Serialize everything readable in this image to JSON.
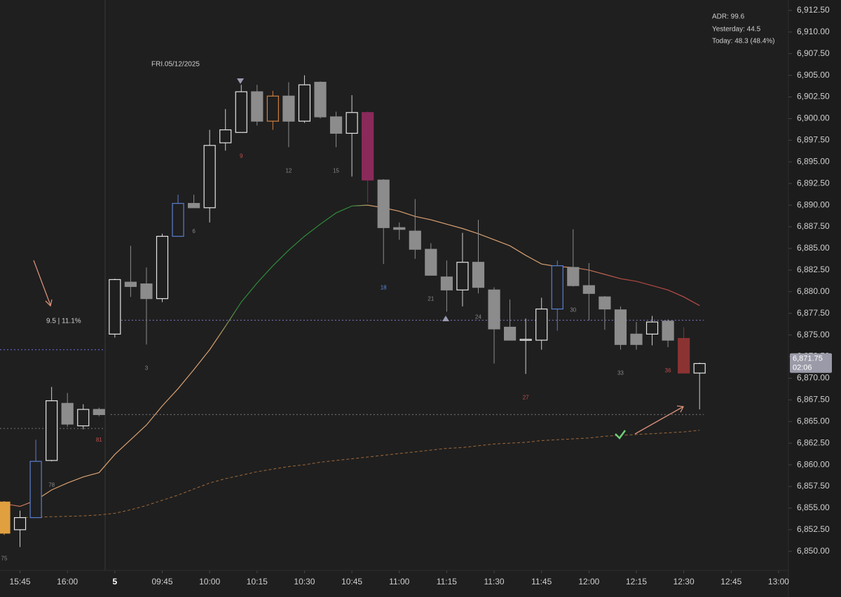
{
  "chart_data": {
    "type": "candlestick",
    "date_label": "FRI.05/12/2025",
    "annotation": "9.5 | 11.1%",
    "info": [
      "ADR: 99.6",
      "Yesterday: 44.5",
      "Today: 48.3 (48.4%)"
    ],
    "last_price": {
      "value": 6871.75,
      "label": "6,871.75"
    },
    "countdown": "02:06",
    "up_color": "#e6e6e6",
    "down_color": "#8c8c8c",
    "candles": [
      {
        "x": "15:40",
        "open": 6852.1,
        "high": 6855.8,
        "low": 6851.9,
        "close": 6855.7,
        "color": "#e0a040"
      },
      {
        "x": "15:45",
        "open": 6852.5,
        "high": 6854.7,
        "low": 6850.5,
        "close": 6853.9
      },
      {
        "x": "15:50",
        "open": 6853.9,
        "high": 6862.9,
        "low": 6853.9,
        "close": 6860.4,
        "color": "#5a7fd0"
      },
      {
        "x": "15:55",
        "open": 6860.5,
        "high": 6869.0,
        "low": 6860.4,
        "close": 6867.4
      },
      {
        "x": "16:00",
        "open": 6867.1,
        "high": 6868.3,
        "low": 6864.4,
        "close": 6864.7
      },
      {
        "x": "16:05",
        "open": 6864.5,
        "high": 6867.0,
        "low": 6864.1,
        "close": 6866.4
      },
      {
        "x": "16:10",
        "open": 6866.4,
        "high": 6866.6,
        "low": 6865.6,
        "close": 6865.8
      },
      {
        "x": "09:30",
        "open": 6875.1,
        "high": 6881.5,
        "low": 6874.7,
        "close": 6881.4
      },
      {
        "x": "09:35",
        "open": 6881.1,
        "high": 6885.3,
        "low": 6879.4,
        "close": 6880.6
      },
      {
        "x": "09:40",
        "open": 6880.9,
        "high": 6882.8,
        "low": 6873.9,
        "close": 6879.2
      },
      {
        "x": "09:45",
        "open": 6879.2,
        "high": 6886.7,
        "low": 6878.8,
        "close": 6886.4
      },
      {
        "x": "09:50",
        "open": 6886.4,
        "high": 6891.2,
        "low": 6886.4,
        "close": 6890.2,
        "color": "#5a7fd0"
      },
      {
        "x": "09:55",
        "open": 6890.2,
        "high": 6891.2,
        "low": 6889.7,
        "close": 6889.7
      },
      {
        "x": "10:00",
        "open": 6889.7,
        "high": 6898.7,
        "low": 6888.0,
        "close": 6896.9
      },
      {
        "x": "10:05",
        "open": 6897.2,
        "high": 6901.1,
        "low": 6896.3,
        "close": 6898.7
      },
      {
        "x": "10:10",
        "open": 6898.4,
        "high": 6903.9,
        "low": 6898.4,
        "close": 6903.1
      },
      {
        "x": "10:15",
        "open": 6903.1,
        "high": 6903.9,
        "low": 6899.2,
        "close": 6899.7
      },
      {
        "x": "10:20",
        "open": 6899.7,
        "high": 6903.2,
        "low": 6898.7,
        "close": 6902.6,
        "color": "#d08040"
      },
      {
        "x": "10:25",
        "open": 6902.6,
        "high": 6904.2,
        "low": 6896.7,
        "close": 6899.7
      },
      {
        "x": "10:30",
        "open": 6899.7,
        "high": 6905.0,
        "low": 6899.5,
        "close": 6903.9
      },
      {
        "x": "10:35",
        "open": 6904.2,
        "high": 6904.3,
        "low": 6900.0,
        "close": 6900.2
      },
      {
        "x": "10:40",
        "open": 6900.2,
        "high": 6900.8,
        "low": 6896.7,
        "close": 6898.3
      },
      {
        "x": "10:45",
        "open": 6898.3,
        "high": 6902.7,
        "low": 6893.3,
        "close": 6900.7
      },
      {
        "x": "10:50",
        "open": 6900.7,
        "high": 6900.8,
        "low": 6890.3,
        "close": 6892.9,
        "color": "#8a2a5a"
      },
      {
        "x": "10:55",
        "open": 6892.9,
        "high": 6893.0,
        "low": 6883.2,
        "close": 6887.4
      },
      {
        "x": "11:00",
        "open": 6887.4,
        "high": 6888.0,
        "low": 6886.0,
        "close": 6887.2
      },
      {
        "x": "11:05",
        "open": 6887.0,
        "high": 6890.7,
        "low": 6883.8,
        "close": 6884.9
      },
      {
        "x": "11:10",
        "open": 6884.9,
        "high": 6885.6,
        "low": 6881.9,
        "close": 6881.9
      },
      {
        "x": "11:15",
        "open": 6881.7,
        "high": 6883.6,
        "low": 6877.7,
        "close": 6880.2
      },
      {
        "x": "11:20",
        "open": 6880.2,
        "high": 6886.8,
        "low": 6878.3,
        "close": 6883.4
      },
      {
        "x": "11:25",
        "open": 6883.4,
        "high": 6888.3,
        "low": 6879.8,
        "close": 6880.5
      },
      {
        "x": "11:30",
        "open": 6880.2,
        "high": 6880.5,
        "low": 6871.7,
        "close": 6875.7
      },
      {
        "x": "11:35",
        "open": 6875.9,
        "high": 6879.1,
        "low": 6874.4,
        "close": 6874.4
      },
      {
        "x": "11:40",
        "open": 6874.4,
        "high": 6876.9,
        "low": 6870.5,
        "close": 6874.5
      },
      {
        "x": "11:45",
        "open": 6874.4,
        "high": 6879.3,
        "low": 6873.3,
        "close": 6878.0
      },
      {
        "x": "11:50",
        "open": 6878.0,
        "high": 6883.6,
        "low": 6875.5,
        "close": 6883.0,
        "color": "#5a7fd0"
      },
      {
        "x": "11:55",
        "open": 6882.8,
        "high": 6887.2,
        "low": 6880.6,
        "close": 6880.7
      },
      {
        "x": "12:00",
        "open": 6880.7,
        "high": 6883.3,
        "low": 6876.7,
        "close": 6879.8
      },
      {
        "x": "12:05",
        "open": 6879.4,
        "high": 6879.5,
        "low": 6875.6,
        "close": 6878.0
      },
      {
        "x": "12:10",
        "open": 6877.9,
        "high": 6878.3,
        "low": 6873.3,
        "close": 6873.9
      },
      {
        "x": "12:15",
        "open": 6875.1,
        "high": 6876.5,
        "low": 6873.3,
        "close": 6873.9
      },
      {
        "x": "12:20",
        "open": 6875.1,
        "high": 6877.2,
        "low": 6873.8,
        "close": 6876.5
      },
      {
        "x": "12:25",
        "open": 6876.6,
        "high": 6876.8,
        "low": 6873.6,
        "close": 6874.4
      },
      {
        "x": "12:30",
        "open": 6874.6,
        "high": 6875.9,
        "low": 6870.6,
        "close": 6870.6,
        "color": "#8b3333"
      },
      {
        "x": "12:35",
        "open": 6870.6,
        "high": 6871.8,
        "low": 6866.4,
        "close": 6871.7
      }
    ],
    "lines": [
      {
        "color": "#d9a070",
        "values": [
          6855.5,
          6855.2,
          6855.9,
          6857.1,
          6857.9,
          6858.6,
          6859.1,
          6861.2,
          6862.9,
          6864.6,
          6866.8,
          6868.8,
          6871.0,
          6873.3,
          6876.0,
          6878.8,
          6881.0,
          6883.0,
          6884.8,
          6886.4,
          6887.8,
          6889.1,
          6889.9,
          6890.0,
          6889.7,
          6889.3,
          6888.7,
          6888.3,
          6887.8,
          6887.3,
          6886.7,
          6886.0,
          6885.3,
          6884.2,
          6883.2,
          6882.9,
          6882.8,
          6882.5,
          6882.0,
          6881.5,
          6881.2,
          6880.7,
          6880.2,
          6879.4,
          6878.4
        ]
      },
      {
        "color": "#a0693a",
        "dashed": true,
        "values": [
          null,
          6853.9,
          6853.95,
          6854.0,
          6854.05,
          6854.1,
          6854.2,
          6854.4,
          6854.8,
          6855.3,
          6855.9,
          6856.5,
          6857.2,
          6857.9,
          6858.4,
          6858.8,
          6859.2,
          6859.5,
          6859.8,
          6860.0,
          6860.3,
          6860.5,
          6860.7,
          6860.9,
          6861.1,
          6861.3,
          6861.5,
          6861.7,
          6861.9,
          6862.0,
          6862.2,
          6862.4,
          6862.5,
          6862.6,
          6862.8,
          6862.9,
          6863.0,
          6863.1,
          6863.3,
          6863.4,
          6863.5,
          6863.6,
          6863.7,
          6863.8,
          6864.0
        ]
      }
    ],
    "levels": [
      {
        "value": 6876.7,
        "color": "#7a70b8",
        "from": "09:30",
        "to": "12:35"
      },
      {
        "value": 6873.3,
        "color": "#5a60c0",
        "from": "15:40",
        "to": "16:10"
      },
      {
        "value": 6865.8,
        "color": "#6a6a6a",
        "from": "09:30",
        "to": "12:35"
      },
      {
        "value": 6864.2,
        "color": "#6a6a6a",
        "from": "15:40",
        "to": "16:10"
      }
    ],
    "bar_counts": [
      {
        "x": "15:40",
        "value": 75,
        "color": "#888888"
      },
      {
        "x": "15:55",
        "value": 78,
        "color": "#888888"
      },
      {
        "x": "16:10",
        "value": 81,
        "color": "#c0504d"
      },
      {
        "x": "09:40",
        "value": 3,
        "color": "#888888"
      },
      {
        "x": "09:55",
        "value": 6,
        "color": "#888888"
      },
      {
        "x": "10:10",
        "value": 9,
        "color": "#c0504d"
      },
      {
        "x": "10:25",
        "value": 12,
        "color": "#888888"
      },
      {
        "x": "10:40",
        "value": 15,
        "color": "#888888"
      },
      {
        "x": "10:55",
        "value": 18,
        "color": "#5a8ae0"
      },
      {
        "x": "11:10",
        "value": 21,
        "color": "#888888"
      },
      {
        "x": "11:25",
        "value": 24,
        "color": "#888888"
      },
      {
        "x": "11:40",
        "value": 27,
        "color": "#c0504d"
      },
      {
        "x": "11:55",
        "value": 30,
        "color": "#888888"
      },
      {
        "x": "12:10",
        "value": 33,
        "color": "#888888"
      },
      {
        "x": "12:25",
        "value": 36,
        "color": "#c0504d"
      }
    ],
    "ylim": [
      6847.8,
      6913.7
    ],
    "yticks": [
      {
        "value": 6850,
        "label": "6,850.00"
      },
      {
        "value": 6852.5,
        "label": "6,852.50"
      },
      {
        "value": 6855,
        "label": "6,855.00"
      },
      {
        "value": 6857.5,
        "label": "6,857.50"
      },
      {
        "value": 6860,
        "label": "6,860.00"
      },
      {
        "value": 6862.5,
        "label": "6,862.50"
      },
      {
        "value": 6865,
        "label": "6,865.00"
      },
      {
        "value": 6867.5,
        "label": "6,867.50"
      },
      {
        "value": 6870,
        "label": "6,870.00"
      },
      {
        "value": 6872.5,
        "label": "6,872.50"
      },
      {
        "value": 6875,
        "label": "6,875.00"
      },
      {
        "value": 6877.5,
        "label": "6,877.50"
      },
      {
        "value": 6880,
        "label": "6,880.00"
      },
      {
        "value": 6882.5,
        "label": "6,882.50"
      },
      {
        "value": 6885,
        "label": "6,885.00"
      },
      {
        "value": 6887.5,
        "label": "6,887.50"
      },
      {
        "value": 6890,
        "label": "6,890.00"
      },
      {
        "value": 6892.5,
        "label": "6,892.50"
      },
      {
        "value": 6895,
        "label": "6,895.00"
      },
      {
        "value": 6897.5,
        "label": "6,897.50"
      },
      {
        "value": 6900,
        "label": "6,900.00"
      },
      {
        "value": 6902.5,
        "label": "6,902.50"
      },
      {
        "value": 6905,
        "label": "6,905.00"
      },
      {
        "value": 6907.5,
        "label": "6,907.50"
      },
      {
        "value": 6910,
        "label": "6,910.00"
      },
      {
        "value": 6912.5,
        "label": "6,912.50"
      }
    ],
    "xticks": [
      "15:45",
      "16:00",
      {
        "value": "09:30",
        "label": "5"
      },
      "09:45",
      "10:00",
      "10:15",
      "10:30",
      "10:45",
      "11:00",
      "11:15",
      "11:30",
      "11:45",
      "12:00",
      "12:15",
      "12:30",
      "12:45",
      "13:00"
    ]
  }
}
